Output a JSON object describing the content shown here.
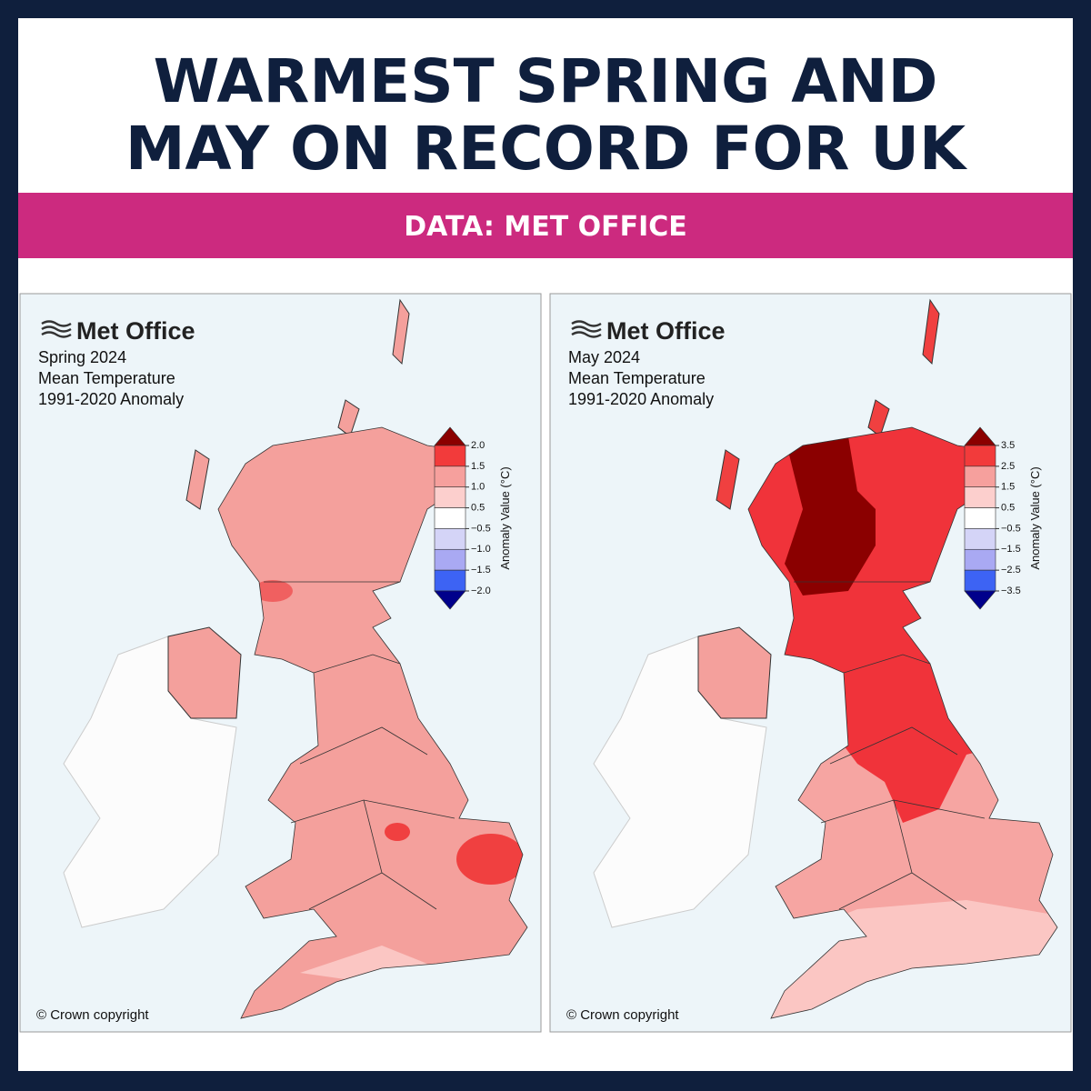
{
  "header": {
    "title_lines": [
      "WARMEST SPRING AND",
      "MAY ON RECORD FOR UK"
    ],
    "subtitle": "DATA: MET OFFICE"
  },
  "maps": [
    {
      "logo": "Met Office",
      "title_lines": [
        "Spring 2024",
        "Mean Temperature",
        "1991-2020 Anomaly"
      ],
      "colorbar": {
        "label": "Anomaly Value (°C)",
        "ticks": [
          "2.0",
          "1.5",
          "1.0",
          "0.5",
          "−0.5",
          "−1.0",
          "−1.5",
          "−2.0"
        ],
        "colors": [
          "#8b0000",
          "#f23b3b",
          "#f6a09d",
          "#fccfcd",
          "#ffffff",
          "#d4d4f7",
          "#a9a9f3",
          "#3d63f4",
          "#00008b"
        ]
      },
      "copyright": "© Crown copyright"
    },
    {
      "logo": "Met Office",
      "title_lines": [
        "May 2024",
        "Mean Temperature",
        "1991-2020 Anomaly"
      ],
      "colorbar": {
        "label": "Anomaly Value (°C)",
        "ticks": [
          "3.5",
          "2.5",
          "1.5",
          "0.5",
          "−0.5",
          "−1.5",
          "−2.5",
          "−3.5"
        ],
        "colors": [
          "#8b0000",
          "#f23b3b",
          "#f6a09d",
          "#fccfcd",
          "#ffffff",
          "#d4d4f7",
          "#a9a9f3",
          "#3d63f4",
          "#00008b"
        ]
      },
      "copyright": "© Crown copyright"
    }
  ]
}
